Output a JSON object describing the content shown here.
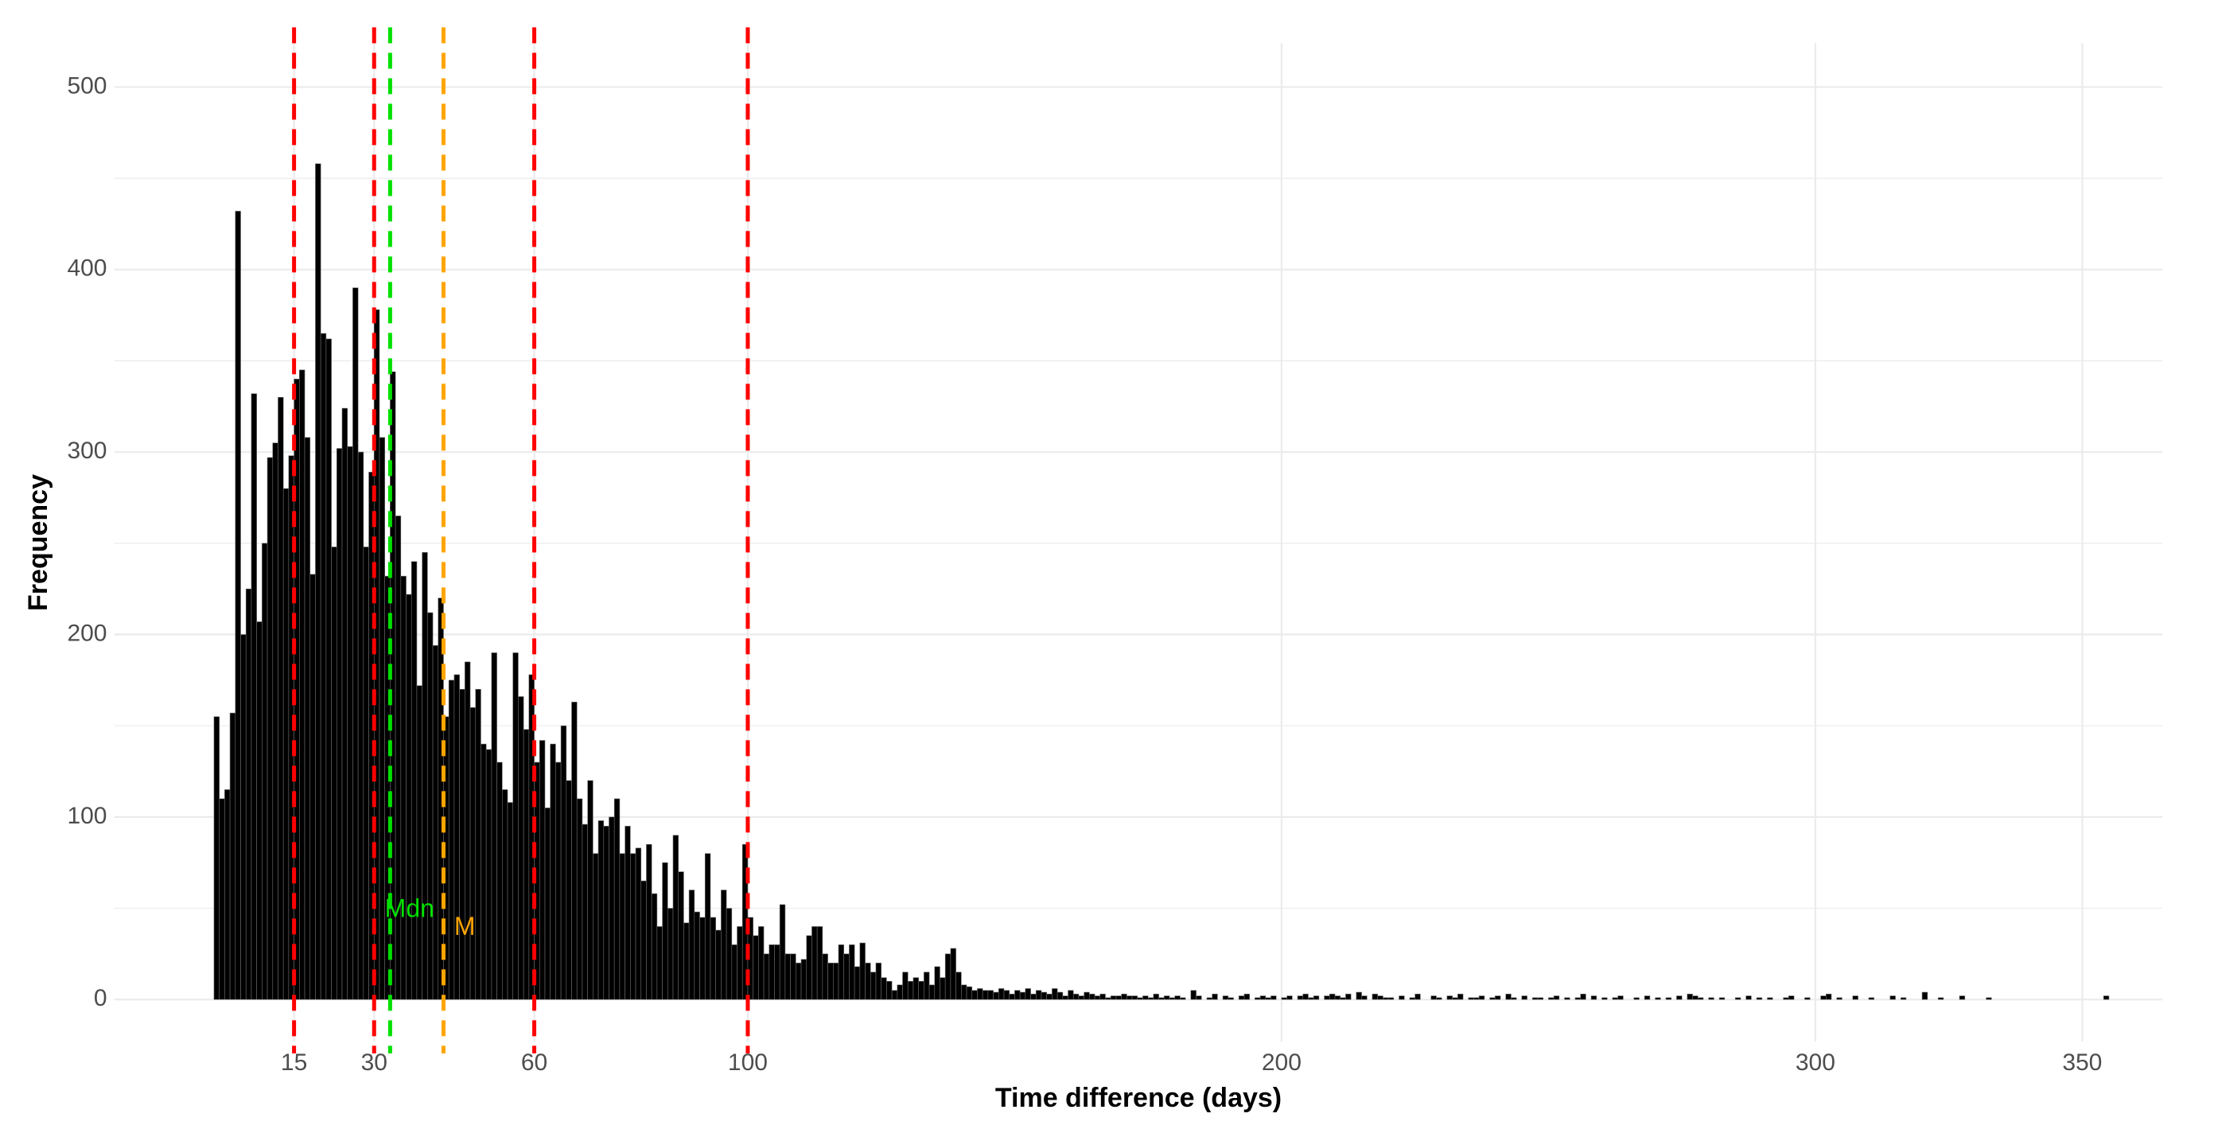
{
  "chart_data": {
    "type": "histogram",
    "x_label": "Time difference (days)",
    "y_label": "Frequency",
    "color": "#000000",
    "edge_color": "#6e6e6e",
    "grid": true,
    "grid_color": "#ebebeb",
    "xlim": [
      -18.7,
      365
    ],
    "ylim": [
      -23,
      524
    ],
    "xticks": [
      15,
      30,
      60,
      100,
      200,
      300,
      350
    ],
    "yticks": [
      0,
      100,
      200,
      300,
      400,
      500
    ],
    "y_minor_ticks": [
      50,
      150,
      250,
      350,
      450
    ],
    "vlines": [
      {
        "value": 15,
        "color": "#ff0000"
      },
      {
        "value": 30,
        "color": "#ff0000"
      },
      {
        "value": 60,
        "color": "#ff0000"
      },
      {
        "value": 100,
        "color": "#ff0000"
      },
      {
        "value": 33,
        "color": "#00e000"
      },
      {
        "value": 43,
        "color": "#ffa500"
      }
    ],
    "annotations": [
      {
        "text": "Mdn",
        "x": 32,
        "y": 49,
        "color": "#00e000"
      },
      {
        "text": "M",
        "x": 45,
        "y": 39,
        "color": "#ffa500"
      }
    ],
    "bins": [
      0,
      1,
      2,
      3,
      4,
      5,
      6,
      7,
      8,
      9,
      10,
      11,
      12,
      13,
      14,
      15,
      16,
      17,
      18,
      19,
      20,
      21,
      22,
      23,
      24,
      25,
      26,
      27,
      28,
      29,
      30,
      31,
      32,
      33,
      34,
      35,
      36,
      37,
      38,
      39,
      40,
      41,
      42,
      43,
      44,
      45,
      46,
      47,
      48,
      49,
      50,
      51,
      52,
      53,
      54,
      55,
      56,
      57,
      58,
      59,
      60,
      61,
      62,
      63,
      64,
      65,
      66,
      67,
      68,
      69,
      70,
      71,
      72,
      73,
      74,
      75,
      76,
      77,
      78,
      79,
      80,
      81,
      82,
      83,
      84,
      85,
      86,
      87,
      88,
      89,
      90,
      91,
      92,
      93,
      94,
      95,
      96,
      97,
      98,
      99,
      100,
      101,
      102,
      103,
      104,
      105,
      106,
      107,
      108,
      109,
      110,
      111,
      112,
      113,
      114,
      115,
      116,
      117,
      118,
      119,
      120,
      121,
      122,
      123,
      124,
      125,
      126,
      127,
      128,
      129,
      130,
      131,
      132,
      133,
      134,
      135,
      136,
      137,
      138,
      139,
      140,
      141,
      142,
      143,
      144,
      145,
      146,
      147,
      148,
      149,
      150,
      151,
      152,
      153,
      154,
      155,
      156,
      157,
      158,
      159,
      160,
      161,
      162,
      163,
      164,
      165,
      166,
      167,
      168,
      169,
      170,
      171,
      172,
      173,
      174,
      175,
      176,
      177,
      178,
      179,
      180,
      181,
      182,
      183,
      184,
      185,
      186,
      187,
      188,
      189,
      190,
      191,
      192,
      193,
      194,
      195,
      196,
      197,
      198,
      199,
      200,
      201,
      202,
      203,
      204,
      205,
      206,
      207,
      208,
      209,
      210,
      211,
      212,
      213,
      214,
      215,
      216,
      217,
      218,
      219,
      220,
      221,
      222,
      223,
      224,
      225,
      226,
      227,
      228,
      229,
      230,
      231,
      232,
      233,
      234,
      235,
      236,
      237,
      238,
      239,
      240,
      241,
      242,
      243,
      244,
      245,
      246,
      247,
      248,
      249,
      250,
      251,
      252,
      253,
      254,
      255,
      256,
      257,
      258,
      259,
      260,
      261,
      262,
      263,
      264,
      265,
      266,
      267,
      268,
      269,
      270,
      271,
      272,
      273,
      274,
      275,
      276,
      277,
      278,
      279,
      280,
      281,
      282,
      283,
      284,
      285,
      286,
      287,
      288,
      289,
      290,
      291,
      292,
      293,
      294,
      295,
      296,
      297,
      298,
      299,
      300,
      301,
      302,
      303,
      304,
      305,
      306,
      307,
      308,
      309,
      310,
      311,
      312,
      313,
      314,
      315,
      316,
      317,
      318,
      319,
      320,
      321,
      322,
      323,
      324,
      325,
      326,
      327,
      328,
      329,
      330,
      331,
      332,
      333,
      334,
      335,
      336,
      337,
      338,
      339,
      340,
      341,
      342,
      343,
      344,
      345,
      346,
      347,
      348,
      349,
      350,
      351,
      352,
      353,
      354,
      355
    ],
    "counts": [
      155,
      110,
      115,
      157,
      432,
      200,
      225,
      332,
      207,
      250,
      297,
      305,
      330,
      280,
      298,
      340,
      345,
      308,
      233,
      458,
      365,
      362,
      248,
      302,
      324,
      303,
      390,
      300,
      248,
      289,
      378,
      308,
      232,
      344,
      265,
      232,
      222,
      240,
      172,
      245,
      212,
      194,
      220,
      155,
      175,
      178,
      170,
      185,
      160,
      170,
      140,
      137,
      190,
      130,
      115,
      108,
      190,
      166,
      148,
      178,
      130,
      142,
      105,
      140,
      130,
      150,
      120,
      163,
      110,
      96,
      120,
      80,
      98,
      95,
      100,
      110,
      80,
      95,
      80,
      83,
      65,
      85,
      58,
      40,
      75,
      50,
      90,
      70,
      42,
      60,
      48,
      45,
      80,
      45,
      38,
      60,
      50,
      30,
      40,
      85,
      45,
      35,
      40,
      25,
      30,
      30,
      52,
      25,
      25,
      20,
      22,
      35,
      40,
      40,
      25,
      20,
      20,
      30,
      25,
      30,
      18,
      31,
      20,
      15,
      20,
      12,
      10,
      5,
      8,
      15,
      10,
      12,
      10,
      15,
      8,
      18,
      12,
      25,
      28,
      15,
      8,
      7,
      5,
      6,
      5,
      5,
      4,
      6,
      5,
      3,
      5,
      4,
      6,
      3,
      5,
      4,
      3,
      6,
      4,
      2,
      5,
      3,
      2,
      4,
      3,
      2,
      3,
      1,
      2,
      2,
      3,
      2,
      2,
      1,
      2,
      1,
      3,
      1,
      2,
      1,
      2,
      1,
      0,
      5,
      2,
      0,
      1,
      3,
      0,
      2,
      1,
      0,
      2,
      3,
      0,
      1,
      2,
      1,
      2,
      0,
      1,
      2,
      0,
      2,
      3,
      1,
      2,
      0,
      2,
      3,
      2,
      1,
      3,
      0,
      4,
      2,
      0,
      3,
      2,
      1,
      1,
      0,
      2,
      0,
      1,
      3,
      0,
      0,
      2,
      1,
      0,
      2,
      1,
      3,
      0,
      1,
      1,
      2,
      0,
      1,
      2,
      0,
      3,
      1,
      0,
      2,
      0,
      1,
      1,
      0,
      1,
      2,
      0,
      1,
      0,
      1,
      3,
      0,
      2,
      0,
      1,
      0,
      1,
      2,
      0,
      0,
      1,
      0,
      2,
      0,
      1,
      0,
      1,
      0,
      2,
      0,
      3,
      2,
      1,
      0,
      1,
      0,
      1,
      0,
      0,
      1,
      0,
      2,
      0,
      1,
      0,
      1,
      0,
      0,
      1,
      2,
      0,
      0,
      1,
      0,
      0,
      2,
      3,
      0,
      1,
      0,
      0,
      2,
      0,
      0,
      1,
      0,
      0,
      0,
      2,
      0,
      1,
      0,
      0,
      0,
      4,
      0,
      0,
      1,
      0,
      0,
      0,
      2,
      0,
      0,
      0,
      0,
      1,
      0,
      0,
      0,
      0,
      0,
      0,
      0,
      0,
      0,
      0,
      0,
      0,
      0,
      0,
      0,
      0,
      0,
      0,
      0,
      0,
      0,
      2
    ]
  }
}
